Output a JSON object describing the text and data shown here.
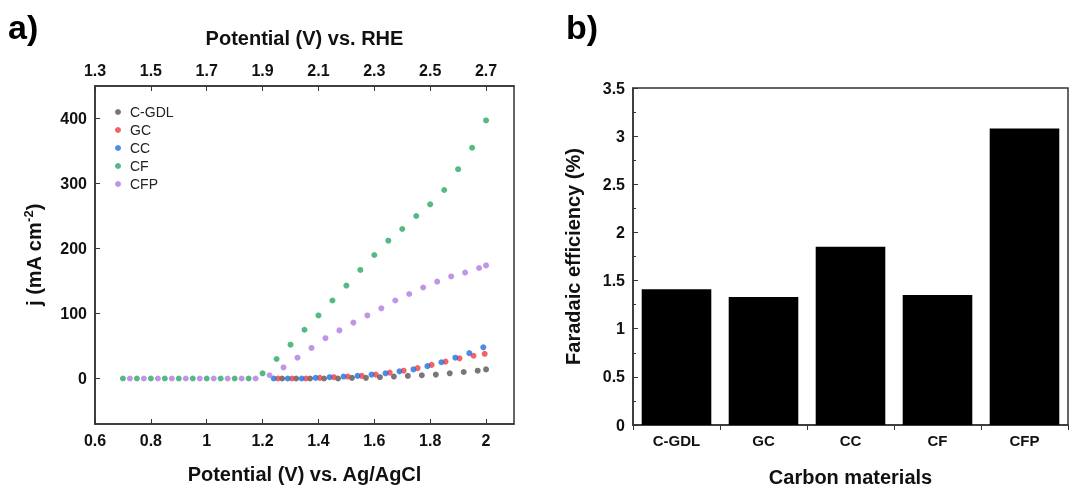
{
  "chart_data": [
    {
      "type": "scatter",
      "annotations": [
        "a)"
      ],
      "xlabel": "Potential (V) vs. Ag/AgCl",
      "x2label": "Potential (V) vs. RHE",
      "ylabel": "j (mA cm$^{-2}$)",
      "xlim": [
        0.6,
        2.1
      ],
      "xticks": [
        0.6,
        0.8,
        1,
        1.2,
        1.4,
        1.6,
        1.8,
        2
      ],
      "x2lim": [
        1.3,
        2.8
      ],
      "x2ticks": [
        1.3,
        1.5,
        1.7,
        1.9,
        2.1,
        2.3,
        2.5,
        2.7
      ],
      "ylim": [
        -70,
        450
      ],
      "yticks": [
        0,
        100,
        200,
        300,
        400
      ],
      "legend": "top left",
      "marker": "circle",
      "grid": false,
      "series": [
        {
          "name": "C-GDL",
          "color": "#555555",
          "x": [
            1.27,
            1.32,
            1.37,
            1.42,
            1.47,
            1.52,
            1.57,
            1.62,
            1.67,
            1.72,
            1.77,
            1.82,
            1.87,
            1.92,
            1.97,
            2.0
          ],
          "values": [
            0,
            0,
            0,
            0,
            0,
            1,
            1,
            2,
            3,
            4,
            5,
            6,
            8,
            10,
            12,
            14
          ]
        },
        {
          "name": "GC",
          "color": "#f03c3c",
          "x": [
            1.255,
            1.305,
            1.355,
            1.405,
            1.455,
            1.505,
            1.555,
            1.605,
            1.655,
            1.705,
            1.755,
            1.805,
            1.855,
            1.905,
            1.955,
            1.995
          ],
          "values": [
            0,
            0,
            0,
            1,
            2,
            3,
            4,
            6,
            9,
            12,
            16,
            21,
            26,
            31,
            35,
            38
          ]
        },
        {
          "name": "CC",
          "color": "#1f6fe0",
          "x": [
            1.24,
            1.29,
            1.34,
            1.39,
            1.44,
            1.49,
            1.54,
            1.59,
            1.64,
            1.69,
            1.74,
            1.79,
            1.84,
            1.89,
            1.94,
            1.99
          ],
          "values": [
            0,
            0,
            0,
            1,
            2,
            3,
            4,
            6,
            8,
            11,
            14,
            19,
            25,
            32,
            39,
            48
          ]
        },
        {
          "name": "CF",
          "color": "#2aa865",
          "x": [
            0.7,
            0.75,
            0.8,
            0.85,
            0.9,
            0.95,
            1.0,
            1.05,
            1.1,
            1.15,
            1.2,
            1.25,
            1.3,
            1.35,
            1.4,
            1.45,
            1.5,
            1.55,
            1.6,
            1.65,
            1.7,
            1.75,
            1.8,
            1.85,
            1.9,
            1.95,
            2.0
          ],
          "values": [
            0,
            0,
            0,
            0,
            0,
            0,
            0,
            0,
            0,
            0,
            8,
            30,
            52,
            75,
            97,
            120,
            143,
            167,
            190,
            212,
            230,
            250,
            268,
            290,
            322,
            355,
            397
          ]
        },
        {
          "name": "CFP",
          "color": "#b07be0",
          "x": [
            0.725,
            0.775,
            0.825,
            0.875,
            0.925,
            0.975,
            1.025,
            1.075,
            1.125,
            1.175,
            1.225,
            1.275,
            1.325,
            1.375,
            1.425,
            1.475,
            1.525,
            1.575,
            1.625,
            1.675,
            1.725,
            1.775,
            1.825,
            1.875,
            1.925,
            1.975,
            2.0
          ],
          "values": [
            0,
            0,
            0,
            0,
            0,
            0,
            0,
            0,
            0,
            0,
            5,
            17,
            32,
            47,
            62,
            74,
            86,
            97,
            108,
            120,
            130,
            140,
            149,
            157,
            163,
            170,
            174
          ]
        }
      ]
    },
    {
      "type": "bar",
      "annotations": [
        "b)"
      ],
      "xlabel": "Carbon materials",
      "ylabel": "Faradaic efficiency (%)",
      "categories": [
        "C-GDL",
        "GC",
        "CC",
        "CF",
        "CFP"
      ],
      "values": [
        1.41,
        1.33,
        1.85,
        1.35,
        3.08
      ],
      "color": "#000000",
      "ylim": [
        0,
        3.5
      ],
      "yticks": [
        0,
        0.5,
        1,
        1.5,
        2,
        2.5,
        3,
        3.5
      ],
      "grid": false,
      "legend": false
    }
  ]
}
